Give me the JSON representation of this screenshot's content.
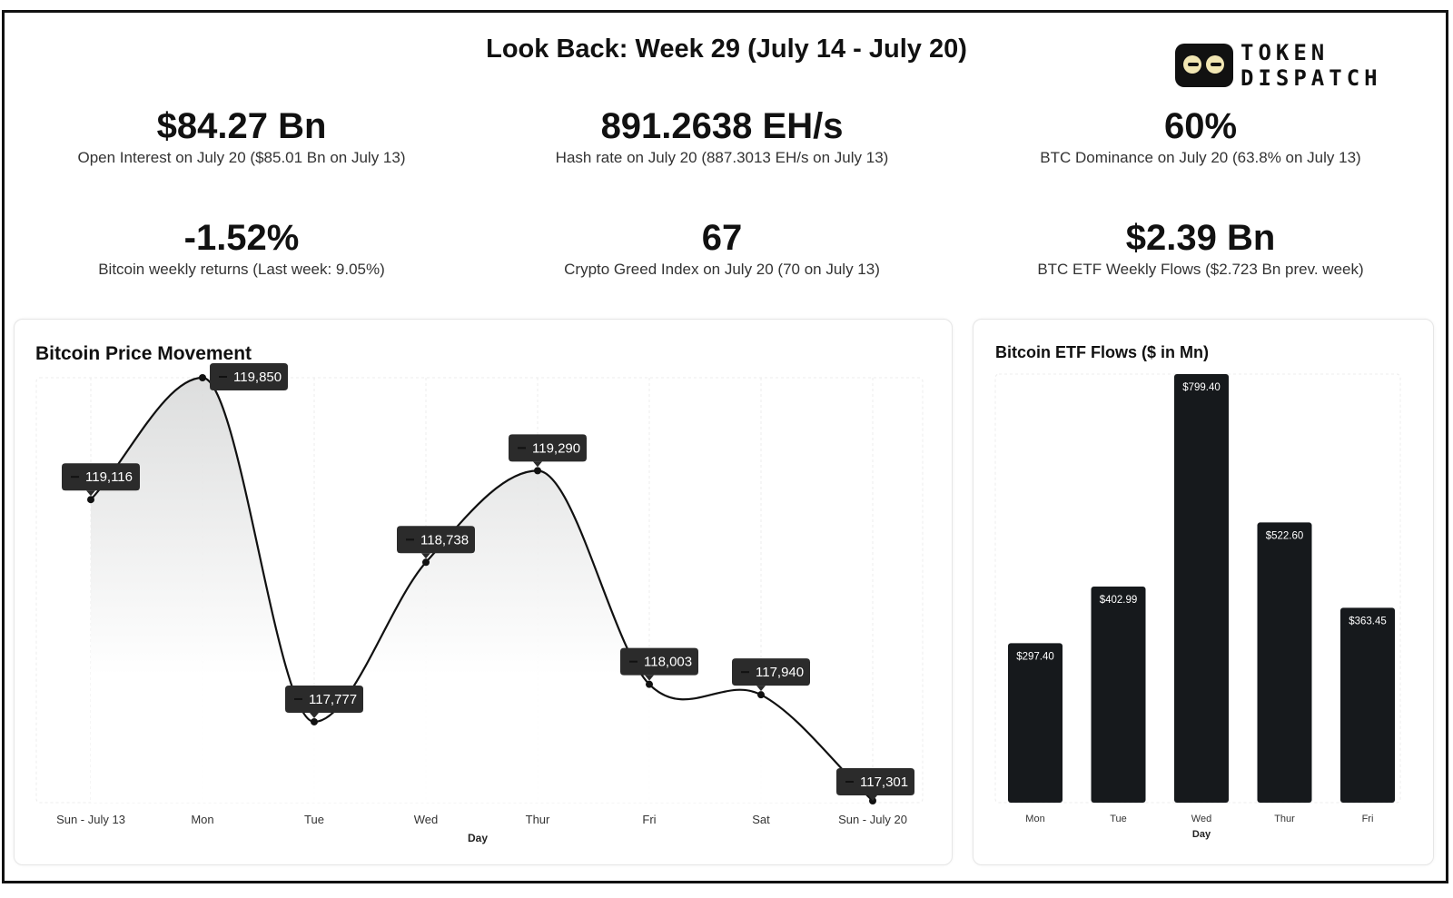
{
  "page": {
    "title": "Look Back: Week 29 (July 14 - July 20)",
    "logo": {
      "line1": "TOKEN",
      "line2": "DISPATCH"
    }
  },
  "stats": [
    {
      "value": "$84.27 Bn",
      "label": "Open Interest on July 20 ($85.01 Bn on July 13)"
    },
    {
      "value": "891.2638 EH/s",
      "label": "Hash rate on July 20 (887.3013 EH/s on July 13)"
    },
    {
      "value": "60%",
      "label": "BTC Dominance on July 20 (63.8% on July 13)"
    },
    {
      "value": "-1.52%",
      "label": "Bitcoin weekly returns (Last week: 9.05%)"
    },
    {
      "value": "67",
      "label": "Crypto Greed Index on July 20 (70 on July 13)"
    },
    {
      "value": "$2.39 Bn",
      "label": "BTC ETF Weekly Flows ($2.723 Bn prev. week)"
    }
  ],
  "chart_data": [
    {
      "type": "area",
      "title": "Bitcoin Price Movement",
      "xlabel": "Day",
      "ylabel": "",
      "categories": [
        "Sun - July 13",
        "Mon",
        "Tue",
        "Wed",
        "Thur",
        "Fri",
        "Sat",
        "Sun - July 20"
      ],
      "values": [
        119116,
        119850,
        117777,
        118738,
        119290,
        118003,
        117940,
        117301
      ],
      "data_labels": [
        "119,116",
        "119,850",
        "117,777",
        "118,738",
        "119,290",
        "118,003",
        "117,940",
        "117,301"
      ],
      "ylim": [
        117301,
        119850
      ],
      "grid": true,
      "legend": "none",
      "colors": {
        "line": "#111111",
        "label_bg": "#2b2b2b",
        "label_text": "#ffffff"
      }
    },
    {
      "type": "bar",
      "title": "Bitcoin ETF Flows ($ in Mn)",
      "xlabel": "Day",
      "ylabel": "",
      "categories": [
        "Mon",
        "Tue",
        "Wed",
        "Thur",
        "Fri"
      ],
      "values": [
        297.4,
        402.99,
        799.4,
        522.6,
        363.45
      ],
      "data_labels": [
        "$297.40",
        "$402.99",
        "$799.40",
        "$522.60",
        "$363.45"
      ],
      "ylim": [
        0,
        799.4
      ],
      "grid": true,
      "legend": "none",
      "colors": {
        "bar": "#16191c",
        "label_text": "#ffffff"
      }
    }
  ]
}
